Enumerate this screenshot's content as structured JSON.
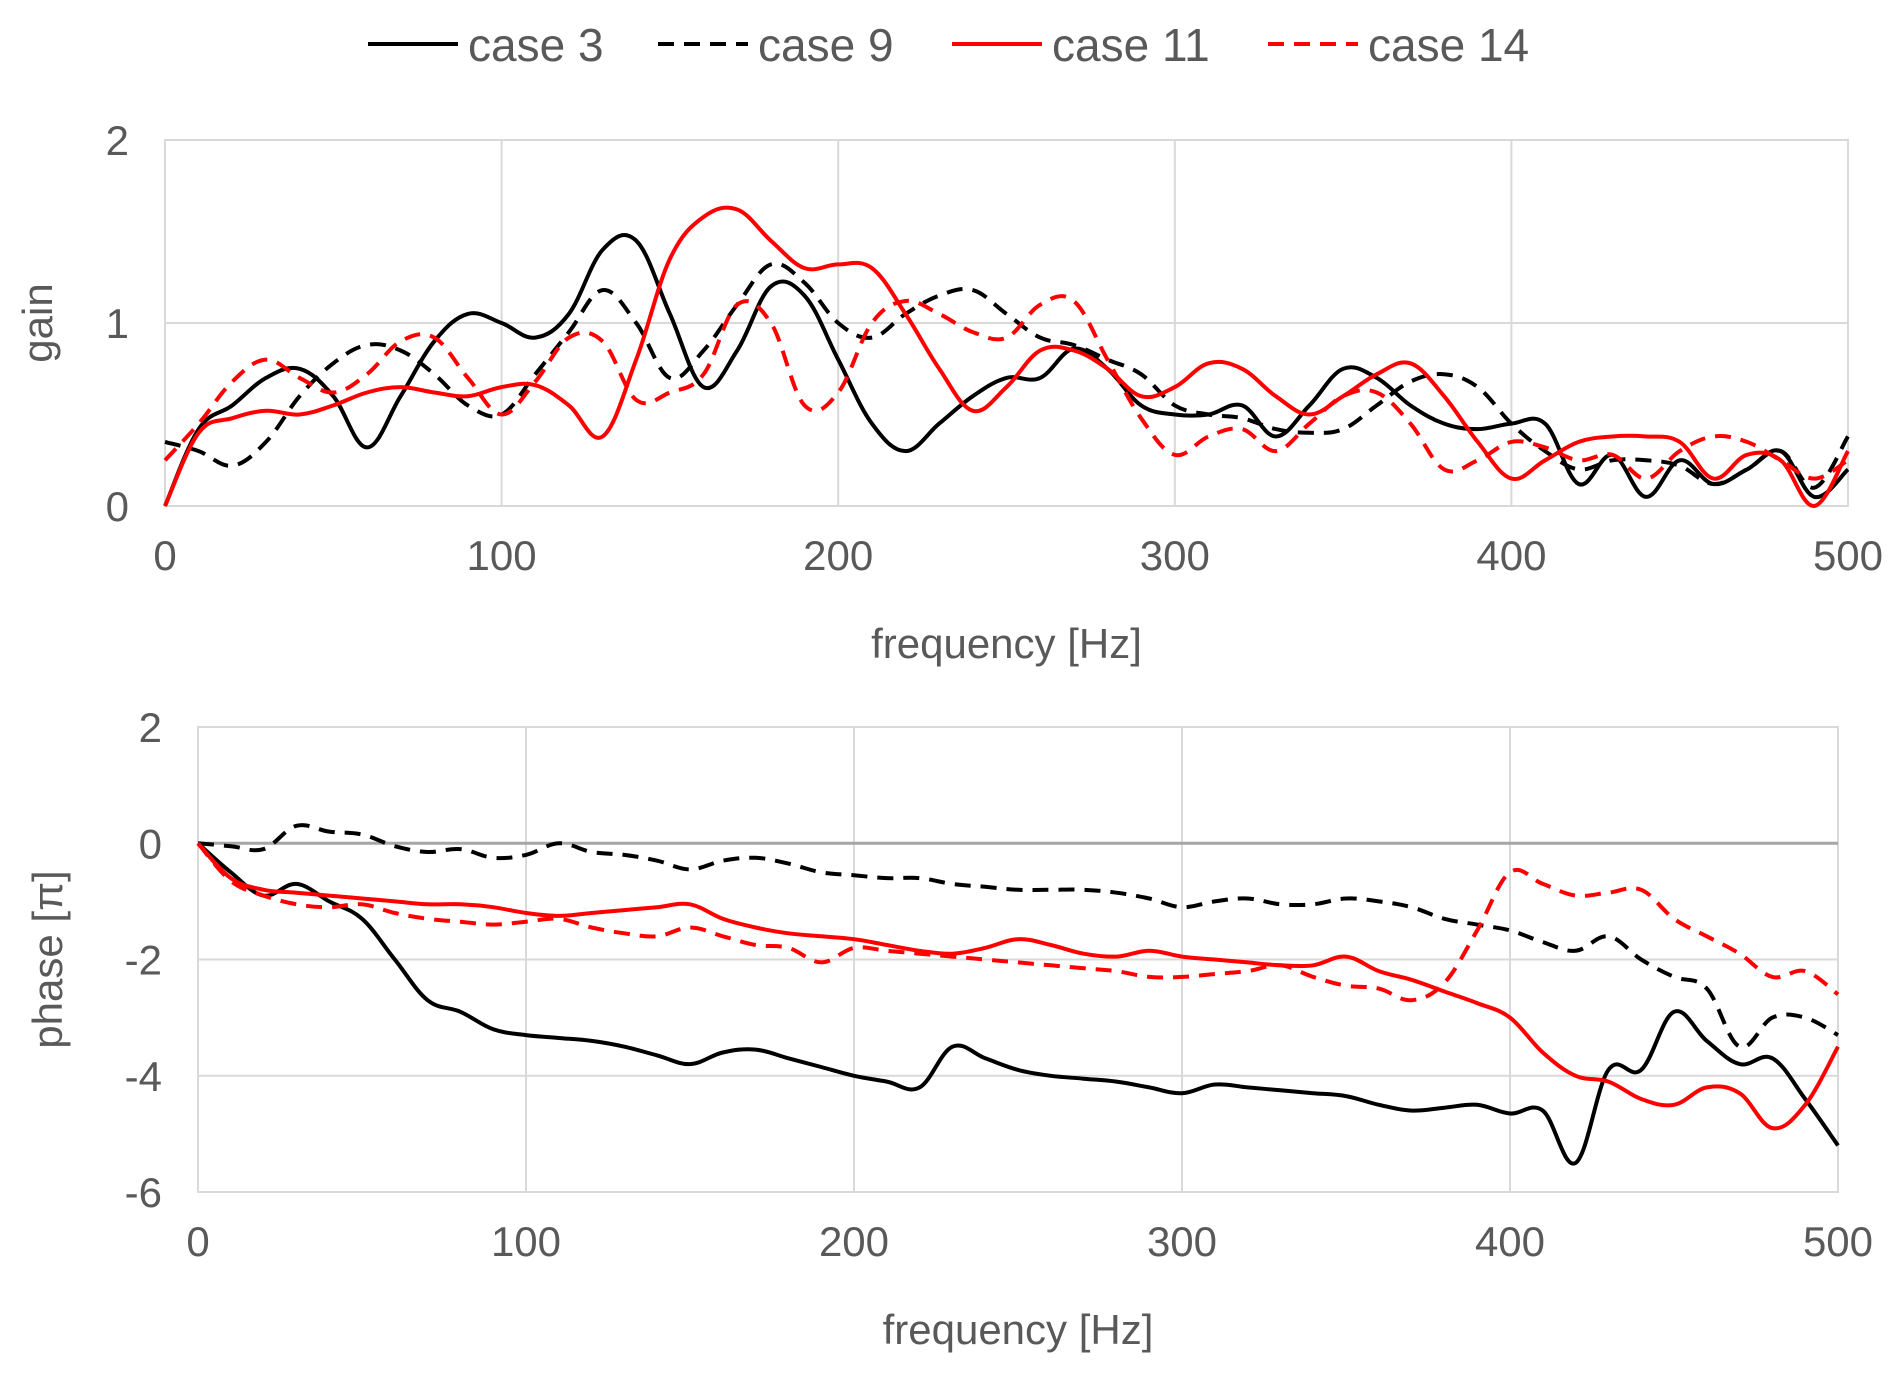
{
  "legend": {
    "position": "top-center",
    "entries": [
      {
        "label": "case 3",
        "color": "#000000",
        "dash": "solid"
      },
      {
        "label": "case 9",
        "color": "#000000",
        "dash": "dashed"
      },
      {
        "label": "case 11",
        "color": "#ff0000",
        "dash": "solid"
      },
      {
        "label": "case 14",
        "color": "#ff0000",
        "dash": "dashed"
      }
    ]
  },
  "chart_data": [
    {
      "type": "line",
      "id": "gain",
      "title": "",
      "xlabel": "frequency [Hz]",
      "ylabel": "gain",
      "xlim": [
        0,
        500
      ],
      "ylim": [
        0,
        2
      ],
      "xticks": [
        0,
        100,
        200,
        300,
        400,
        500
      ],
      "yticks": [
        0,
        1,
        2
      ],
      "grid": true,
      "x": [
        0,
        10,
        20,
        30,
        40,
        50,
        60,
        70,
        80,
        90,
        100,
        110,
        120,
        130,
        140,
        150,
        160,
        170,
        180,
        190,
        200,
        210,
        220,
        230,
        240,
        250,
        260,
        270,
        280,
        290,
        300,
        310,
        320,
        330,
        340,
        350,
        360,
        370,
        380,
        390,
        400,
        410,
        420,
        430,
        440,
        450,
        460,
        470,
        480,
        490,
        500
      ],
      "series": [
        {
          "name": "case 3",
          "values": [
            0.0,
            0.42,
            0.55,
            0.7,
            0.75,
            0.6,
            0.32,
            0.6,
            0.9,
            1.05,
            1.0,
            0.92,
            1.05,
            1.4,
            1.45,
            1.05,
            0.65,
            0.85,
            1.2,
            1.15,
            0.8,
            0.45,
            0.3,
            0.45,
            0.6,
            0.7,
            0.7,
            0.86,
            0.75,
            0.55,
            0.5,
            0.5,
            0.55,
            0.38,
            0.55,
            0.75,
            0.7,
            0.55,
            0.45,
            0.42,
            0.45,
            0.45,
            0.12,
            0.28,
            0.05,
            0.25,
            0.12,
            0.2,
            0.3,
            0.05,
            0.2
          ]
        },
        {
          "name": "case 9",
          "values": [
            0.35,
            0.3,
            0.22,
            0.35,
            0.6,
            0.78,
            0.88,
            0.85,
            0.72,
            0.55,
            0.5,
            0.72,
            0.95,
            1.18,
            1.0,
            0.7,
            0.85,
            1.1,
            1.32,
            1.22,
            1.0,
            0.92,
            1.05,
            1.15,
            1.18,
            1.05,
            0.92,
            0.88,
            0.8,
            0.72,
            0.55,
            0.5,
            0.48,
            0.42,
            0.4,
            0.42,
            0.55,
            0.68,
            0.72,
            0.65,
            0.45,
            0.3,
            0.2,
            0.25,
            0.25,
            0.22,
            0.12,
            0.2,
            0.3,
            0.1,
            0.38
          ]
        },
        {
          "name": "case 11",
          "values": [
            0.0,
            0.4,
            0.48,
            0.52,
            0.5,
            0.55,
            0.62,
            0.65,
            0.62,
            0.6,
            0.65,
            0.66,
            0.55,
            0.38,
            0.8,
            1.35,
            1.58,
            1.62,
            1.45,
            1.3,
            1.32,
            1.3,
            1.05,
            0.75,
            0.52,
            0.65,
            0.85,
            0.85,
            0.75,
            0.6,
            0.65,
            0.78,
            0.75,
            0.6,
            0.5,
            0.6,
            0.72,
            0.78,
            0.6,
            0.35,
            0.15,
            0.25,
            0.35,
            0.38,
            0.38,
            0.35,
            0.15,
            0.28,
            0.25,
            0.0,
            0.3
          ]
        },
        {
          "name": "case 14",
          "values": [
            0.25,
            0.45,
            0.68,
            0.8,
            0.7,
            0.62,
            0.72,
            0.9,
            0.92,
            0.7,
            0.5,
            0.68,
            0.92,
            0.9,
            0.58,
            0.62,
            0.72,
            1.1,
            1.0,
            0.55,
            0.62,
            1.0,
            1.12,
            1.05,
            0.95,
            0.92,
            1.1,
            1.12,
            0.8,
            0.48,
            0.28,
            0.38,
            0.42,
            0.3,
            0.45,
            0.6,
            0.62,
            0.45,
            0.2,
            0.25,
            0.35,
            0.32,
            0.25,
            0.28,
            0.15,
            0.3,
            0.38,
            0.35,
            0.25,
            0.15,
            0.25
          ]
        }
      ]
    },
    {
      "type": "line",
      "id": "phase",
      "title": "",
      "xlabel": "frequency [Hz]",
      "ylabel": "phase [π]",
      "xlim": [
        0,
        500
      ],
      "ylim": [
        -6,
        2
      ],
      "xticks": [
        0,
        100,
        200,
        300,
        400,
        500
      ],
      "yticks": [
        -6,
        -4,
        -2,
        0,
        2
      ],
      "grid": true,
      "x": [
        0,
        10,
        20,
        30,
        40,
        50,
        60,
        70,
        80,
        90,
        100,
        110,
        120,
        130,
        140,
        150,
        160,
        170,
        180,
        190,
        200,
        210,
        220,
        230,
        240,
        250,
        260,
        270,
        280,
        290,
        300,
        310,
        320,
        330,
        340,
        350,
        360,
        370,
        380,
        390,
        400,
        410,
        420,
        430,
        440,
        450,
        460,
        470,
        480,
        490,
        500
      ],
      "series": [
        {
          "name": "case 3",
          "values": [
            0.0,
            -0.5,
            -0.9,
            -0.7,
            -1.0,
            -1.3,
            -2.0,
            -2.7,
            -2.9,
            -3.2,
            -3.3,
            -3.35,
            -3.4,
            -3.5,
            -3.65,
            -3.8,
            -3.6,
            -3.55,
            -3.7,
            -3.85,
            -4.0,
            -4.1,
            -4.2,
            -3.5,
            -3.7,
            -3.9,
            -4.0,
            -4.05,
            -4.1,
            -4.2,
            -4.3,
            -4.15,
            -4.2,
            -4.25,
            -4.3,
            -4.35,
            -4.5,
            -4.6,
            -4.55,
            -4.5,
            -4.65,
            -4.6,
            -5.5,
            -3.9,
            -3.9,
            -2.9,
            -3.4,
            -3.8,
            -3.7,
            -4.4,
            -5.2
          ]
        },
        {
          "name": "case 9",
          "values": [
            0.0,
            -0.05,
            -0.1,
            0.3,
            0.2,
            0.15,
            -0.05,
            -0.15,
            -0.1,
            -0.25,
            -0.2,
            0.0,
            -0.15,
            -0.2,
            -0.3,
            -0.45,
            -0.3,
            -0.25,
            -0.35,
            -0.5,
            -0.55,
            -0.6,
            -0.6,
            -0.7,
            -0.75,
            -0.8,
            -0.8,
            -0.8,
            -0.85,
            -0.95,
            -1.1,
            -1.0,
            -0.95,
            -1.05,
            -1.05,
            -0.95,
            -1.0,
            -1.1,
            -1.3,
            -1.4,
            -1.5,
            -1.7,
            -1.85,
            -1.6,
            -2.0,
            -2.3,
            -2.5,
            -3.5,
            -3.0,
            -3.0,
            -3.3
          ]
        },
        {
          "name": "case 11",
          "values": [
            0.0,
            -0.6,
            -0.8,
            -0.85,
            -0.9,
            -0.95,
            -1.0,
            -1.05,
            -1.05,
            -1.1,
            -1.2,
            -1.25,
            -1.2,
            -1.15,
            -1.1,
            -1.05,
            -1.3,
            -1.45,
            -1.55,
            -1.6,
            -1.65,
            -1.75,
            -1.85,
            -1.9,
            -1.8,
            -1.65,
            -1.75,
            -1.9,
            -1.95,
            -1.85,
            -1.95,
            -2.0,
            -2.05,
            -2.1,
            -2.1,
            -1.95,
            -2.2,
            -2.35,
            -2.55,
            -2.75,
            -3.0,
            -3.6,
            -4.0,
            -4.1,
            -4.4,
            -4.5,
            -4.2,
            -4.3,
            -4.9,
            -4.5,
            -3.5
          ]
        },
        {
          "name": "case 14",
          "values": [
            0.0,
            -0.65,
            -0.9,
            -1.05,
            -1.1,
            -1.05,
            -1.2,
            -1.3,
            -1.35,
            -1.4,
            -1.35,
            -1.3,
            -1.45,
            -1.55,
            -1.6,
            -1.45,
            -1.6,
            -1.75,
            -1.8,
            -2.05,
            -1.8,
            -1.85,
            -1.9,
            -1.95,
            -2.0,
            -2.05,
            -2.1,
            -2.15,
            -2.2,
            -2.3,
            -2.3,
            -2.25,
            -2.2,
            -2.1,
            -2.3,
            -2.45,
            -2.5,
            -2.7,
            -2.4,
            -1.5,
            -0.5,
            -0.7,
            -0.9,
            -0.85,
            -0.8,
            -1.3,
            -1.6,
            -1.9,
            -2.3,
            -2.2,
            -2.6
          ]
        }
      ]
    }
  ]
}
